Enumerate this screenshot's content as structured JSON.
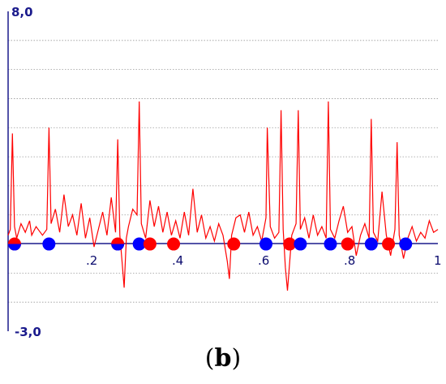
{
  "caption": {
    "open": "(",
    "letter": "b",
    "close": ")"
  },
  "chart_data": {
    "type": "line",
    "title": "",
    "xlabel": "",
    "ylabel": "",
    "ylim": [
      -3,
      8
    ],
    "xlim": [
      0,
      1
    ],
    "y_top_label": "8,0",
    "y_bottom_label": "-3,0",
    "x_tick_labels": [
      ".2",
      ".4",
      ".6",
      ".8",
      "1"
    ],
    "x_ticks": [
      0.2,
      0.4,
      0.6,
      0.8,
      1.0
    ],
    "grid": "horizontal dotted",
    "colors": {
      "axis": "#1a1a8c",
      "line": "#ff0000",
      "marker_red": "#ff0000",
      "marker_blue": "#0000ff"
    },
    "series": [
      {
        "values": [
          [
            0.0,
            0.3
          ],
          [
            0.005,
            0.5
          ],
          [
            0.01,
            3.8
          ],
          [
            0.015,
            0.6
          ],
          [
            0.02,
            0.2
          ],
          [
            0.03,
            0.7
          ],
          [
            0.04,
            0.4
          ],
          [
            0.05,
            0.8
          ],
          [
            0.055,
            0.3
          ],
          [
            0.065,
            0.6
          ],
          [
            0.08,
            0.3
          ],
          [
            0.09,
            0.5
          ],
          [
            0.095,
            4.0
          ],
          [
            0.1,
            0.7
          ],
          [
            0.11,
            1.2
          ],
          [
            0.12,
            0.4
          ],
          [
            0.13,
            1.7
          ],
          [
            0.14,
            0.6
          ],
          [
            0.15,
            1.0
          ],
          [
            0.16,
            0.3
          ],
          [
            0.17,
            1.4
          ],
          [
            0.18,
            0.2
          ],
          [
            0.19,
            0.9
          ],
          [
            0.2,
            -0.1
          ],
          [
            0.21,
            0.5
          ],
          [
            0.22,
            1.1
          ],
          [
            0.23,
            0.3
          ],
          [
            0.24,
            1.6
          ],
          [
            0.25,
            0.4
          ],
          [
            0.255,
            3.6
          ],
          [
            0.26,
            0.3
          ],
          [
            0.265,
            -0.6
          ],
          [
            0.27,
            -1.5
          ],
          [
            0.275,
            0.2
          ],
          [
            0.28,
            0.6
          ],
          [
            0.29,
            1.2
          ],
          [
            0.3,
            1.0
          ],
          [
            0.305,
            4.9
          ],
          [
            0.31,
            0.7
          ],
          [
            0.32,
            0.2
          ],
          [
            0.33,
            1.5
          ],
          [
            0.34,
            0.6
          ],
          [
            0.35,
            1.3
          ],
          [
            0.36,
            0.4
          ],
          [
            0.37,
            1.1
          ],
          [
            0.38,
            0.3
          ],
          [
            0.39,
            0.8
          ],
          [
            0.4,
            0.2
          ],
          [
            0.41,
            1.1
          ],
          [
            0.42,
            0.3
          ],
          [
            0.43,
            1.9
          ],
          [
            0.44,
            0.4
          ],
          [
            0.45,
            1.0
          ],
          [
            0.46,
            0.2
          ],
          [
            0.47,
            0.6
          ],
          [
            0.48,
            0.1
          ],
          [
            0.49,
            0.7
          ],
          [
            0.5,
            0.3
          ],
          [
            0.51,
            -0.6
          ],
          [
            0.515,
            -1.2
          ],
          [
            0.52,
            0.3
          ],
          [
            0.53,
            0.9
          ],
          [
            0.54,
            1.0
          ],
          [
            0.55,
            0.4
          ],
          [
            0.56,
            1.1
          ],
          [
            0.57,
            0.3
          ],
          [
            0.58,
            0.6
          ],
          [
            0.59,
            0.1
          ],
          [
            0.6,
            0.9
          ],
          [
            0.603,
            4.0
          ],
          [
            0.61,
            0.6
          ],
          [
            0.62,
            0.2
          ],
          [
            0.63,
            0.4
          ],
          [
            0.635,
            4.6
          ],
          [
            0.64,
            0.5
          ],
          [
            0.645,
            -0.8
          ],
          [
            0.65,
            -1.6
          ],
          [
            0.66,
            0.3
          ],
          [
            0.67,
            0.7
          ],
          [
            0.675,
            4.6
          ],
          [
            0.68,
            0.5
          ],
          [
            0.69,
            0.9
          ],
          [
            0.7,
            0.2
          ],
          [
            0.71,
            1.0
          ],
          [
            0.72,
            0.3
          ],
          [
            0.73,
            0.6
          ],
          [
            0.74,
            0.2
          ],
          [
            0.745,
            4.9
          ],
          [
            0.75,
            0.5
          ],
          [
            0.76,
            0.2
          ],
          [
            0.77,
            0.8
          ],
          [
            0.78,
            1.3
          ],
          [
            0.79,
            0.4
          ],
          [
            0.8,
            0.6
          ],
          [
            0.81,
            -0.4
          ],
          [
            0.82,
            0.3
          ],
          [
            0.83,
            0.7
          ],
          [
            0.84,
            0.2
          ],
          [
            0.845,
            4.3
          ],
          [
            0.85,
            0.4
          ],
          [
            0.86,
            0.1
          ],
          [
            0.87,
            1.8
          ],
          [
            0.88,
            0.3
          ],
          [
            0.89,
            -0.4
          ],
          [
            0.9,
            0.5
          ],
          [
            0.905,
            3.5
          ],
          [
            0.91,
            0.3
          ],
          [
            0.92,
            -0.5
          ],
          [
            0.93,
            0.2
          ],
          [
            0.94,
            0.6
          ],
          [
            0.95,
            0.1
          ],
          [
            0.96,
            0.4
          ],
          [
            0.97,
            0.2
          ],
          [
            0.98,
            0.8
          ],
          [
            0.99,
            0.4
          ],
          [
            1.0,
            0.5
          ]
        ]
      }
    ],
    "markers": [
      {
        "x": 0.015,
        "color": "red",
        "half": true
      },
      {
        "x": 0.095,
        "color": "blue"
      },
      {
        "x": 0.255,
        "color": "red",
        "half": true
      },
      {
        "x": 0.305,
        "color": "blue"
      },
      {
        "x": 0.33,
        "color": "red"
      },
      {
        "x": 0.385,
        "color": "red"
      },
      {
        "x": 0.525,
        "color": "red"
      },
      {
        "x": 0.6,
        "color": "blue"
      },
      {
        "x": 0.655,
        "color": "red"
      },
      {
        "x": 0.68,
        "color": "blue"
      },
      {
        "x": 0.75,
        "color": "blue"
      },
      {
        "x": 0.79,
        "color": "red"
      },
      {
        "x": 0.845,
        "color": "blue"
      },
      {
        "x": 0.885,
        "color": "red"
      },
      {
        "x": 0.925,
        "color": "blue"
      }
    ]
  }
}
